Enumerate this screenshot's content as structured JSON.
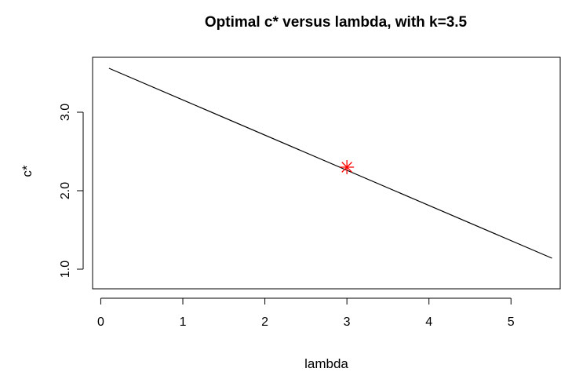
{
  "chart_data": {
    "type": "line",
    "title": "Optimal c* versus lambda, with k=3.5",
    "xlabel": "lambda",
    "ylabel": "c*",
    "x_ticks": [
      0,
      1,
      2,
      3,
      4,
      5
    ],
    "x_tick_labels": [
      "0",
      "1",
      "2",
      "3",
      "4",
      "5"
    ],
    "y_ticks": [
      1.0,
      2.0,
      3.0
    ],
    "y_tick_labels": [
      "1.0",
      "2.0",
      "3.0"
    ],
    "xlim": [
      -0.1,
      5.6
    ],
    "ylim": [
      0.75,
      3.7
    ],
    "grid": false,
    "series": [
      {
        "x": [
          0.1,
          5.5
        ],
        "y": [
          3.56,
          1.14
        ],
        "color": "#000000"
      }
    ],
    "highlight_point": {
      "x": 3.0,
      "y": 2.3,
      "marker": "asterisk",
      "color": "#ff0000"
    }
  }
}
